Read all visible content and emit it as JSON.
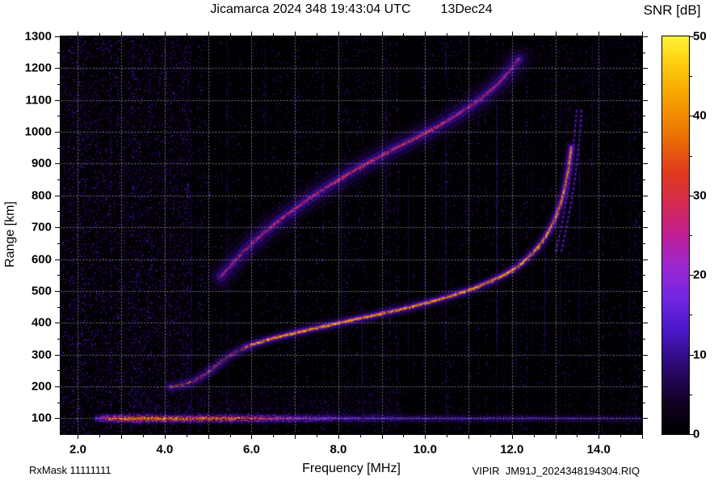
{
  "figure": {
    "footer_left": "RxMask 11111111",
    "footer_right": "VIPIR  JM91J_2024348194304.RIQ"
  },
  "chart_data": {
    "type": "heatmap",
    "title": "Jicamarca 2024 348 19:43:04 UTC",
    "subtitle_date": "13Dec24",
    "xlabel": "Frequency [MHz]",
    "ylabel": "Range [km]",
    "colorbar_label": "SNR [dB]",
    "xlim": [
      1.6,
      15.0
    ],
    "ylim": [
      50,
      1300
    ],
    "clim": [
      0,
      50
    ],
    "xticks": [
      "2.0",
      "4.0",
      "6.0",
      "8.0",
      "10.0",
      "12.0",
      "14.0"
    ],
    "xtick_values": [
      2,
      4,
      6,
      8,
      10,
      12,
      14
    ],
    "yticks": [
      100,
      200,
      300,
      400,
      500,
      600,
      700,
      800,
      900,
      1000,
      1100,
      1200,
      1300
    ],
    "colorbar_ticks": [
      0,
      10,
      20,
      30,
      40,
      50
    ],
    "grid": {
      "x_step_mhz": 1,
      "y_step_km": 100,
      "style": "dotted",
      "color": "#ffffff"
    },
    "palette": {
      "name": "black-purple-red-yellow",
      "stops": [
        [
          0,
          "#000000"
        ],
        [
          0.08,
          "#120024"
        ],
        [
          0.17,
          "#2c0a70"
        ],
        [
          0.26,
          "#4a18c8"
        ],
        [
          0.34,
          "#7326e2"
        ],
        [
          0.42,
          "#9c28d2"
        ],
        [
          0.5,
          "#c01e98"
        ],
        [
          0.58,
          "#d62b52"
        ],
        [
          0.66,
          "#e03c1c"
        ],
        [
          0.76,
          "#ec7804"
        ],
        [
          0.86,
          "#f8a802"
        ],
        [
          0.94,
          "#ffd312"
        ],
        [
          1,
          "#fff23c"
        ]
      ]
    },
    "layers": {
      "e_layer": {
        "name": "E-region echo",
        "range_km": 100,
        "thickness_km": 20,
        "snr_profile": [
          [
            2.4,
            14
          ],
          [
            2.7,
            30
          ],
          [
            3.0,
            36
          ],
          [
            3.4,
            38
          ],
          [
            3.8,
            37
          ],
          [
            4.2,
            35
          ],
          [
            4.6,
            31
          ],
          [
            5.0,
            34
          ],
          [
            5.4,
            33
          ],
          [
            5.8,
            31
          ],
          [
            6.2,
            28
          ],
          [
            6.6,
            24
          ],
          [
            7.0,
            21
          ],
          [
            7.6,
            18
          ],
          [
            8.2,
            15
          ],
          [
            9.0,
            13
          ],
          [
            10.0,
            12
          ],
          [
            11.0,
            11
          ],
          [
            12.0,
            11
          ],
          [
            13.0,
            10
          ],
          [
            14.0,
            9
          ],
          [
            15.0,
            8
          ]
        ],
        "scatter_above": {
          "freq_span": [
            3.2,
            9.5
          ],
          "range_span": [
            110,
            195
          ],
          "snr_max": 9
        }
      },
      "f_trace_hop1": {
        "name": "F-region trace, first hop",
        "snr_core": 46,
        "points": [
          [
            4.15,
            198
          ],
          [
            4.35,
            203
          ],
          [
            4.6,
            213
          ],
          [
            4.85,
            229
          ],
          [
            5.05,
            250
          ],
          [
            5.25,
            272
          ],
          [
            5.5,
            298
          ],
          [
            5.75,
            316
          ],
          [
            6.0,
            331
          ],
          [
            6.5,
            352
          ],
          [
            7.0,
            368
          ],
          [
            7.5,
            384
          ],
          [
            8.0,
            399
          ],
          [
            8.5,
            414
          ],
          [
            9.0,
            429
          ],
          [
            9.5,
            444
          ],
          [
            10.0,
            461
          ],
          [
            10.5,
            480
          ],
          [
            11.0,
            502
          ],
          [
            11.5,
            529
          ],
          [
            12.0,
            563
          ],
          [
            12.3,
            595
          ],
          [
            12.6,
            636
          ],
          [
            12.85,
            685
          ],
          [
            13.05,
            742
          ],
          [
            13.2,
            808
          ],
          [
            13.3,
            878
          ],
          [
            13.37,
            950
          ]
        ]
      },
      "f_trace_hop2": {
        "name": "F-region trace, second hop diffuse",
        "snr_core": 32,
        "points": [
          [
            5.3,
            545
          ],
          [
            5.6,
            592
          ],
          [
            5.9,
            635
          ],
          [
            6.3,
            685
          ],
          [
            6.8,
            738
          ],
          [
            7.3,
            788
          ],
          [
            7.8,
            832
          ],
          [
            8.3,
            874
          ],
          [
            8.8,
            912
          ],
          [
            9.3,
            948
          ],
          [
            9.8,
            982
          ],
          [
            10.3,
            1018
          ],
          [
            10.8,
            1058
          ],
          [
            11.3,
            1105
          ],
          [
            11.8,
            1165
          ],
          [
            12.15,
            1228
          ]
        ]
      },
      "cusp_traces": {
        "name": "cusp doubles near critical frequency",
        "snr": 18,
        "curves": [
          [
            [
              13.02,
              625
            ],
            [
              13.14,
              700
            ],
            [
              13.25,
              780
            ],
            [
              13.34,
              860
            ],
            [
              13.41,
              940
            ],
            [
              13.46,
              1015
            ],
            [
              13.49,
              1070
            ]
          ],
          [
            [
              13.14,
              625
            ],
            [
              13.26,
              700
            ],
            [
              13.37,
              780
            ],
            [
              13.46,
              860
            ],
            [
              13.53,
              940
            ],
            [
              13.58,
              1015
            ],
            [
              13.61,
              1070
            ]
          ]
        ]
      },
      "rfi_lines": [
        {
          "f": 3.05,
          "snr": 7
        },
        {
          "f": 4.05,
          "snr": 9
        },
        {
          "f": 4.62,
          "snr": 9
        },
        {
          "f": 5.45,
          "snr": 7
        },
        {
          "f": 6.3,
          "snr": 8
        },
        {
          "f": 7.0,
          "snr": 8
        },
        {
          "f": 8.05,
          "snr": 12
        },
        {
          "f": 8.55,
          "snr": 10
        },
        {
          "f": 9.1,
          "snr": 11
        },
        {
          "f": 9.6,
          "snr": 9
        },
        {
          "f": 10.0,
          "snr": 10
        },
        {
          "f": 10.45,
          "snr": 11
        },
        {
          "f": 10.95,
          "snr": 8
        },
        {
          "f": 11.65,
          "snr": 13
        },
        {
          "f": 12.1,
          "snr": 9
        },
        {
          "f": 12.45,
          "snr": 8
        },
        {
          "f": 12.75,
          "snr": 9
        },
        {
          "f": 13.1,
          "snr": 8
        },
        {
          "f": 13.55,
          "snr": 9
        },
        {
          "f": 13.85,
          "snr": 10
        },
        {
          "f": 14.35,
          "snr": 8
        },
        {
          "f": 14.7,
          "snr": 7
        }
      ],
      "noise_floor": {
        "snr_range": [
          0,
          11
        ],
        "character": "speckled vertical streaks, denser below 4.5 MHz"
      }
    }
  }
}
